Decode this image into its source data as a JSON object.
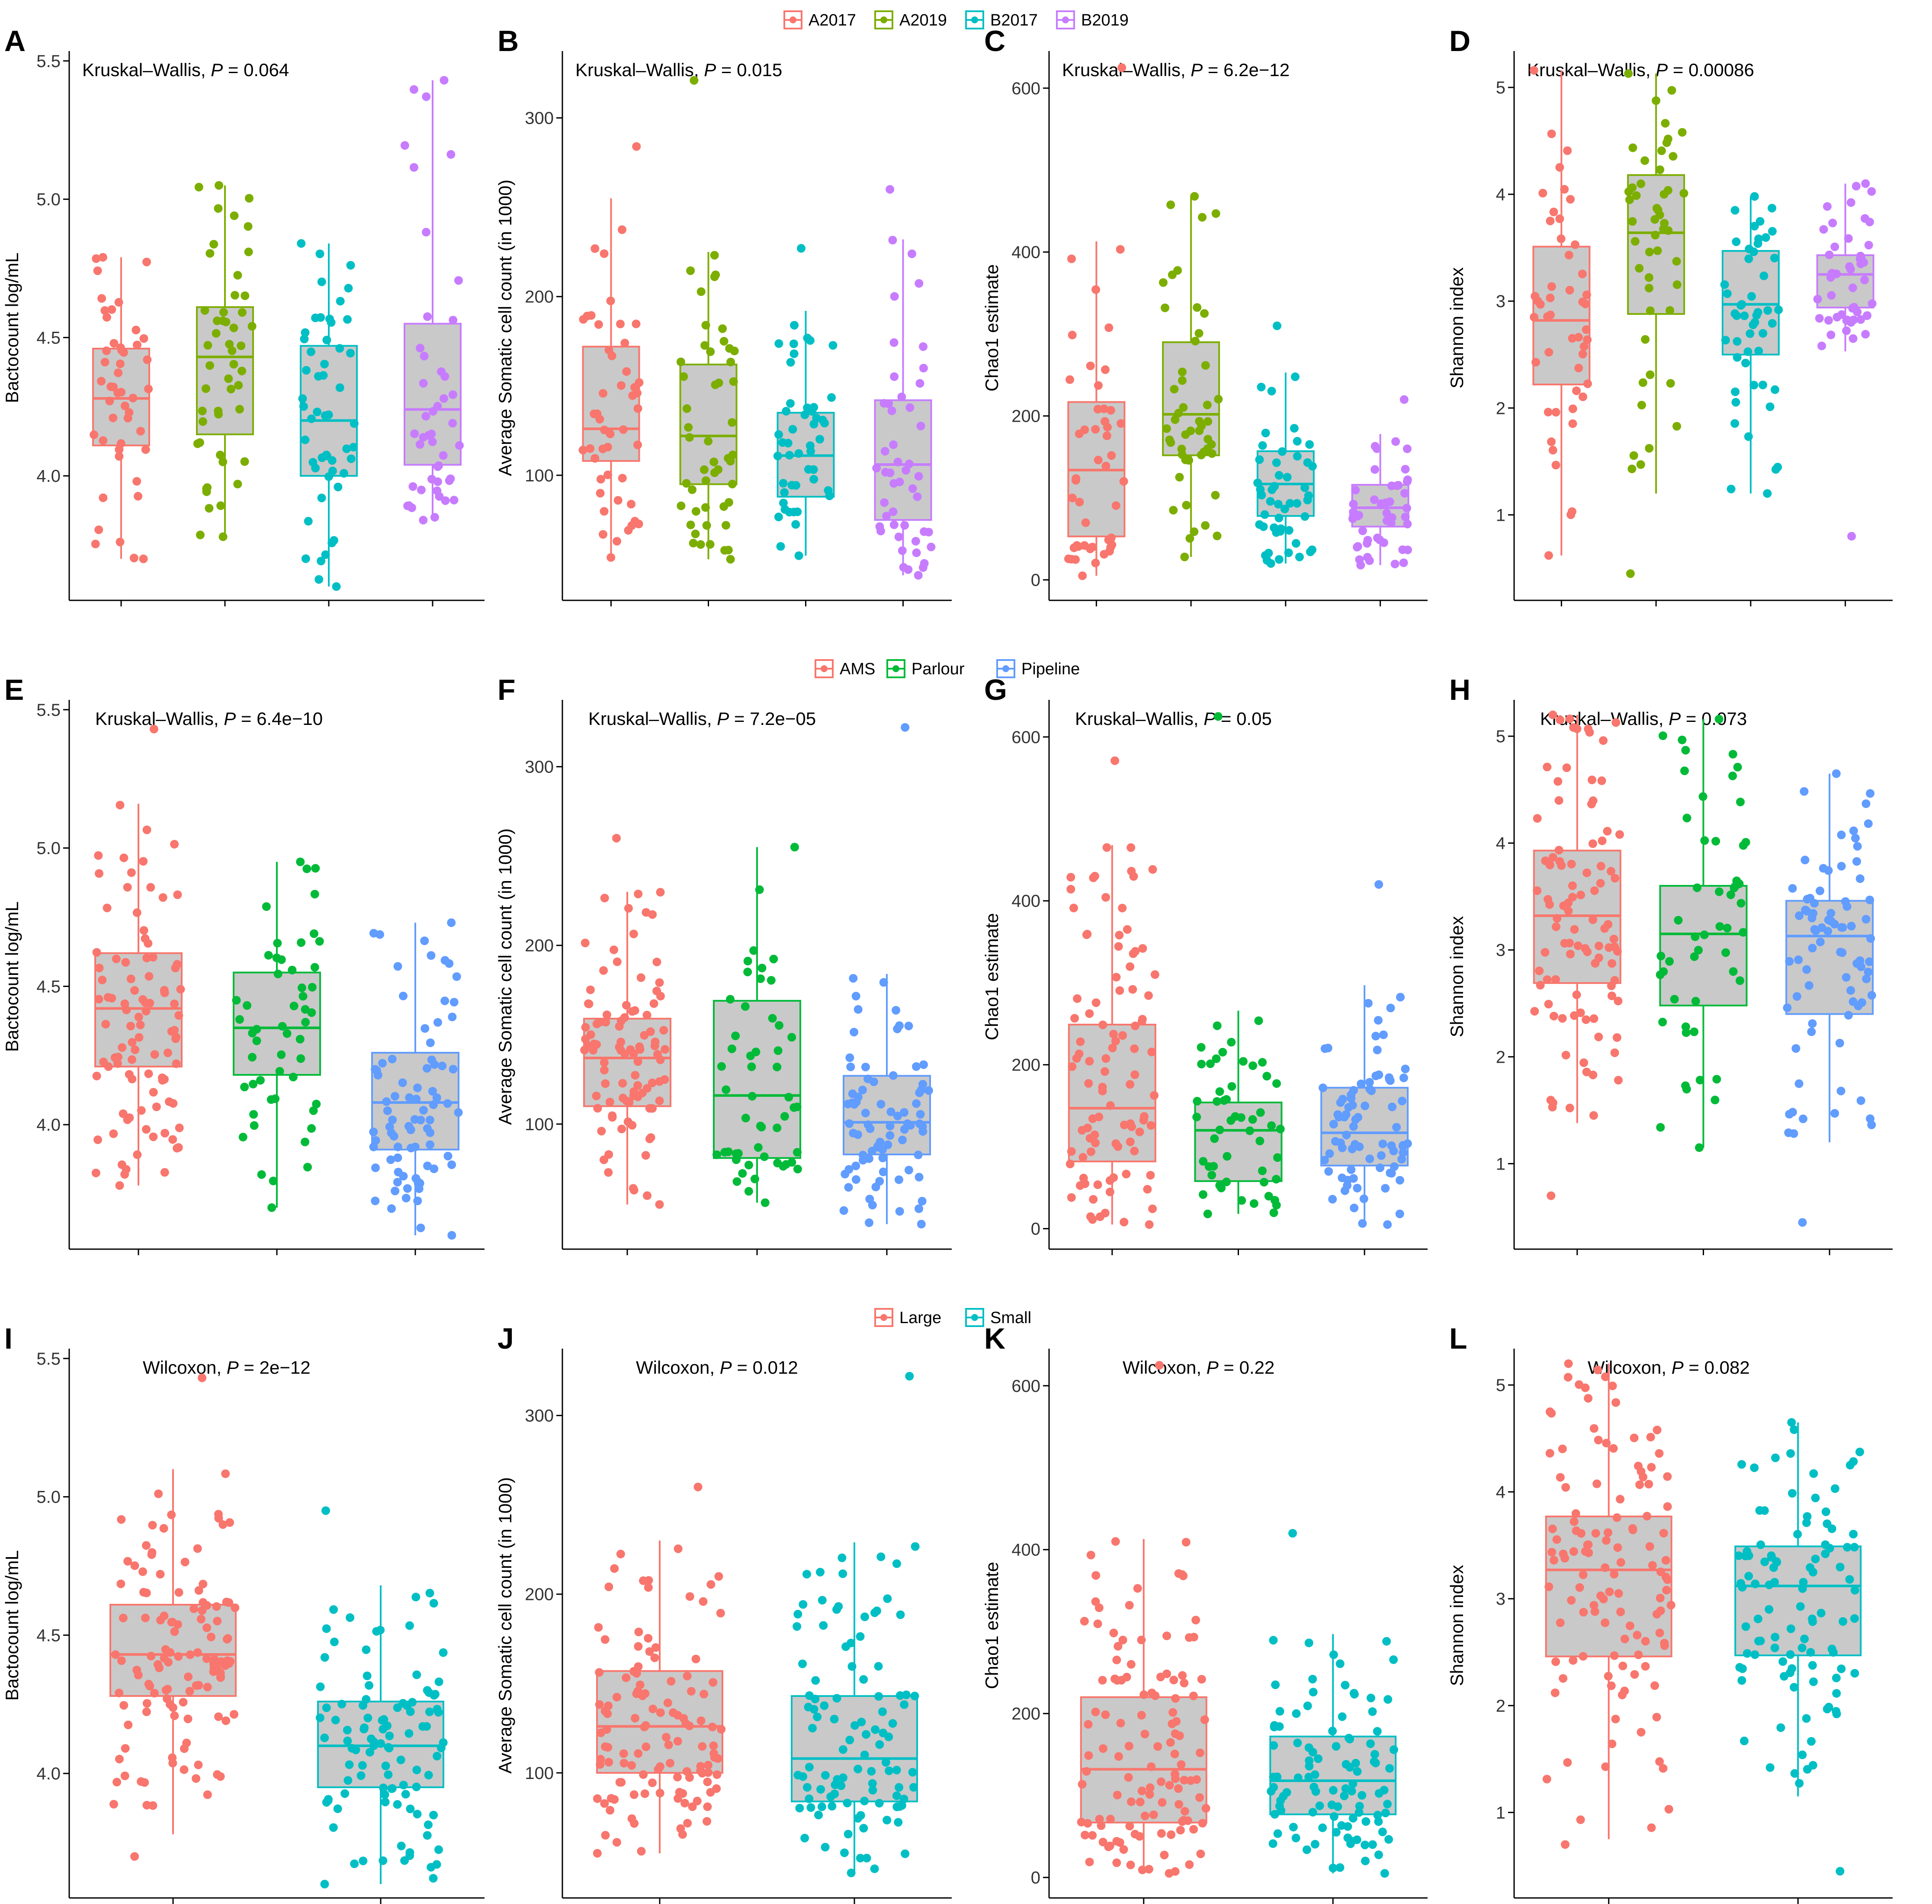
{
  "figure": {
    "panel_letters": [
      "A",
      "B",
      "C",
      "D",
      "E",
      "F",
      "G",
      "H",
      "I",
      "J",
      "K",
      "L"
    ]
  },
  "legends": [
    {
      "items": [
        {
          "label": "A2017",
          "color": "#F8766D"
        },
        {
          "label": "A2019",
          "color": "#7CAE00"
        },
        {
          "label": "B2017",
          "color": "#00BFC4"
        },
        {
          "label": "B2019",
          "color": "#C77CFF"
        }
      ]
    },
    {
      "items": [
        {
          "label": "AMS",
          "color": "#F8766D"
        },
        {
          "label": "Parlour",
          "color": "#00BA38"
        },
        {
          "label": "Pipeline",
          "color": "#619CFF"
        }
      ]
    },
    {
      "items": [
        {
          "label": "Large",
          "color": "#F8766D"
        },
        {
          "label": "Small",
          "color": "#00BFC4"
        }
      ]
    }
  ],
  "chart_data": [
    {
      "panel": "A",
      "type": "box",
      "test": "Kruskal–Wallis, ",
      "p_label": "P",
      "p_value": " = 0.064",
      "ylabel": "Bactocount log/mL",
      "ylim": [
        3.55,
        5.52
      ],
      "yticks": [
        4.0,
        4.5,
        5.0,
        5.5
      ],
      "tick_labels": [
        "4.0",
        "4.5",
        "5.0",
        "5.5"
      ],
      "groups": [
        "A2017",
        "A2019",
        "B2017",
        "B2019"
      ],
      "series": [
        {
          "name": "A2017",
          "color": "#F8766D",
          "q1": 4.11,
          "median": 4.28,
          "q3": 4.46,
          "lo": 3.7,
          "hi": 4.79,
          "n": 48,
          "min": 3.7,
          "max": 4.79
        },
        {
          "name": "A2019",
          "color": "#7CAE00",
          "q1": 4.15,
          "median": 4.43,
          "q3": 4.61,
          "lo": 3.78,
          "hi": 5.05,
          "n": 50,
          "min": 3.78,
          "max": 5.05
        },
        {
          "name": "B2017",
          "color": "#00BFC4",
          "q1": 4.0,
          "median": 4.2,
          "q3": 4.47,
          "lo": 3.6,
          "hi": 4.84,
          "n": 52,
          "min": 3.6,
          "max": 4.84
        },
        {
          "name": "B2019",
          "color": "#C77CFF",
          "q1": 4.04,
          "median": 4.24,
          "q3": 4.55,
          "lo": 3.84,
          "hi": 5.43,
          "n": 46,
          "min": 3.84,
          "max": 5.43
        }
      ]
    },
    {
      "panel": "B",
      "type": "box",
      "test": "Kruskal–Wallis, ",
      "p_label": "P",
      "p_value": " = 0.015",
      "ylabel": "Average Somatic cell count (in 1000)",
      "ylim": [
        30,
        335
      ],
      "yticks": [
        100,
        200,
        300
      ],
      "tick_labels": [
        "100",
        "200",
        "300"
      ],
      "groups": [
        "A2017",
        "A2019",
        "B2017",
        "B2019"
      ],
      "series": [
        {
          "name": "A2017",
          "color": "#F8766D",
          "q1": 108,
          "median": 126,
          "q3": 172,
          "lo": 54,
          "hi": 255,
          "n": 48,
          "min": 54,
          "max": 284
        },
        {
          "name": "A2019",
          "color": "#7CAE00",
          "q1": 95,
          "median": 122,
          "q3": 162,
          "lo": 53,
          "hi": 225,
          "n": 50,
          "min": 53,
          "max": 321
        },
        {
          "name": "B2017",
          "color": "#00BFC4",
          "q1": 88,
          "median": 111,
          "q3": 135,
          "lo": 55,
          "hi": 192,
          "n": 48,
          "min": 55,
          "max": 227
        },
        {
          "name": "B2019",
          "color": "#C77CFF",
          "q1": 75,
          "median": 106,
          "q3": 142,
          "lo": 44,
          "hi": 232,
          "n": 48,
          "min": 44,
          "max": 260
        }
      ]
    },
    {
      "panel": "C",
      "type": "box",
      "test": "Kruskal–Wallis, ",
      "p_label": "P",
      "p_value": " = 6.2e−12",
      "ylabel": "Chao1 estimate",
      "ylim": [
        -25,
        640
      ],
      "yticks": [
        0,
        200,
        400,
        600
      ],
      "tick_labels": [
        "0",
        "200",
        "400",
        "600"
      ],
      "groups": [
        "A2017",
        "A2019",
        "B2017",
        "B2019"
      ],
      "series": [
        {
          "name": "A2017",
          "color": "#F8766D",
          "q1": 53,
          "median": 134,
          "q3": 217,
          "lo": 5,
          "hi": 413,
          "n": 48,
          "min": 5,
          "max": 625
        },
        {
          "name": "A2019",
          "color": "#7CAE00",
          "q1": 152,
          "median": 202,
          "q3": 290,
          "lo": 28,
          "hi": 468,
          "n": 50,
          "min": 28,
          "max": 468
        },
        {
          "name": "B2017",
          "color": "#00BFC4",
          "q1": 78,
          "median": 117,
          "q3": 157,
          "lo": 20,
          "hi": 253,
          "n": 50,
          "min": 20,
          "max": 310
        },
        {
          "name": "B2019",
          "color": "#C77CFF",
          "q1": 65,
          "median": 88,
          "q3": 116,
          "lo": 18,
          "hi": 178,
          "n": 48,
          "min": 18,
          "max": 220
        }
      ]
    },
    {
      "panel": "D",
      "type": "box",
      "test": "Kruskal–Wallis, ",
      "p_label": "P",
      "p_value": " = 0.00086",
      "ylabel": "Shannon index",
      "ylim": [
        0.2,
        5.3
      ],
      "yticks": [
        1,
        2,
        3,
        4,
        5
      ],
      "tick_labels": [
        "1",
        "2",
        "3",
        "4",
        "5"
      ],
      "groups": [
        "A2017",
        "A2019",
        "B2017",
        "B2019"
      ],
      "series": [
        {
          "name": "A2017",
          "color": "#F8766D",
          "q1": 2.22,
          "median": 2.82,
          "q3": 3.51,
          "lo": 0.62,
          "hi": 5.16,
          "n": 48,
          "min": 0.62,
          "max": 5.16
        },
        {
          "name": "A2019",
          "color": "#7CAE00",
          "q1": 2.88,
          "median": 3.64,
          "q3": 4.18,
          "lo": 1.2,
          "hi": 5.13,
          "n": 50,
          "min": 0.45,
          "max": 5.13
        },
        {
          "name": "B2017",
          "color": "#00BFC4",
          "q1": 2.5,
          "median": 2.97,
          "q3": 3.47,
          "lo": 1.2,
          "hi": 3.98,
          "n": 50,
          "min": 1.2,
          "max": 3.98
        },
        {
          "name": "B2019",
          "color": "#C77CFF",
          "q1": 2.94,
          "median": 3.25,
          "q3": 3.43,
          "lo": 2.53,
          "hi": 4.1,
          "n": 48,
          "min": 0.8,
          "max": 4.1
        }
      ]
    },
    {
      "panel": "E",
      "type": "box",
      "test": "Kruskal–Wallis, ",
      "p_label": "P",
      "p_value": " = 6.4e−10",
      "ylabel": "Bactocount log/mL",
      "ylim": [
        3.55,
        5.52
      ],
      "yticks": [
        4.0,
        4.5,
        5.0,
        5.5
      ],
      "tick_labels": [
        "4.0",
        "4.5",
        "5.0",
        "5.5"
      ],
      "groups": [
        "AMS",
        "Parlour",
        "Pipeline"
      ],
      "series": [
        {
          "name": "AMS",
          "color": "#F8766D",
          "q1": 4.21,
          "median": 4.42,
          "q3": 4.62,
          "lo": 3.78,
          "hi": 5.16,
          "n": 96,
          "min": 3.78,
          "max": 5.43
        },
        {
          "name": "Parlour",
          "color": "#00BA38",
          "q1": 4.18,
          "median": 4.35,
          "q3": 4.55,
          "lo": 3.7,
          "hi": 4.95,
          "n": 52,
          "min": 3.7,
          "max": 4.95
        },
        {
          "name": "Pipeline",
          "color": "#619CFF",
          "q1": 3.91,
          "median": 4.08,
          "q3": 4.26,
          "lo": 3.6,
          "hi": 4.73,
          "n": 80,
          "min": 3.6,
          "max": 4.73
        }
      ]
    },
    {
      "panel": "F",
      "type": "box",
      "test": "Kruskal–Wallis, ",
      "p_label": "P",
      "p_value": " = 7.2e−05",
      "ylabel": "Average Somatic cell count (in 1000)",
      "ylim": [
        30,
        335
      ],
      "yticks": [
        100,
        200,
        300
      ],
      "tick_labels": [
        "100",
        "200",
        "300"
      ],
      "groups": [
        "AMS",
        "Parlour",
        "Pipeline"
      ],
      "series": [
        {
          "name": "AMS",
          "color": "#F8766D",
          "q1": 110,
          "median": 137,
          "q3": 159,
          "lo": 55,
          "hi": 230,
          "n": 96,
          "min": 55,
          "max": 260
        },
        {
          "name": "Parlour",
          "color": "#00BA38",
          "q1": 81,
          "median": 116,
          "q3": 169,
          "lo": 56,
          "hi": 255,
          "n": 52,
          "min": 56,
          "max": 255
        },
        {
          "name": "Pipeline",
          "color": "#619CFF",
          "q1": 83,
          "median": 101,
          "q3": 127,
          "lo": 44,
          "hi": 184,
          "n": 80,
          "min": 44,
          "max": 322
        }
      ]
    },
    {
      "panel": "G",
      "type": "box",
      "test": "Kruskal–Wallis, ",
      "p_label": "P",
      "p_value": " = 0.05",
      "ylabel": "Chao1 estimate",
      "ylim": [
        -25,
        640
      ],
      "yticks": [
        0,
        200,
        400,
        600
      ],
      "tick_labels": [
        "0",
        "200",
        "400",
        "600"
      ],
      "groups": [
        "AMS",
        "Parlour",
        "Pipeline"
      ],
      "series": [
        {
          "name": "AMS",
          "color": "#F8766D",
          "q1": 82,
          "median": 147,
          "q3": 249,
          "lo": 5,
          "hi": 468,
          "n": 96,
          "min": 5,
          "max": 571
        },
        {
          "name": "Parlour",
          "color": "#00BA38",
          "q1": 58,
          "median": 120,
          "q3": 154,
          "lo": 18,
          "hi": 266,
          "n": 52,
          "min": 18,
          "max": 625
        },
        {
          "name": "Pipeline",
          "color": "#619CFF",
          "q1": 77,
          "median": 117,
          "q3": 172,
          "lo": 5,
          "hi": 297,
          "n": 80,
          "min": 5,
          "max": 420
        }
      ]
    },
    {
      "panel": "H",
      "type": "box",
      "test": "Kruskal–Wallis, ",
      "p_label": "P",
      "p_value": " = 0.073",
      "ylabel": "Shannon index",
      "ylim": [
        0.2,
        5.3
      ],
      "yticks": [
        1,
        2,
        3,
        4,
        5
      ],
      "tick_labels": [
        "1",
        "2",
        "3",
        "4",
        "5"
      ],
      "groups": [
        "AMS",
        "Parlour",
        "Pipeline"
      ],
      "series": [
        {
          "name": "AMS",
          "color": "#F8766D",
          "q1": 2.69,
          "median": 3.32,
          "q3": 3.93,
          "lo": 1.38,
          "hi": 5.2,
          "n": 96,
          "min": 0.7,
          "max": 5.2
        },
        {
          "name": "Parlour",
          "color": "#00BA38",
          "q1": 2.48,
          "median": 3.15,
          "q3": 3.6,
          "lo": 1.15,
          "hi": 5.16,
          "n": 52,
          "min": 1.15,
          "max": 5.16
        },
        {
          "name": "Pipeline",
          "color": "#619CFF",
          "q1": 2.4,
          "median": 3.13,
          "q3": 3.46,
          "lo": 1.2,
          "hi": 4.65,
          "n": 80,
          "min": 0.45,
          "max": 4.65
        }
      ]
    },
    {
      "panel": "I",
      "type": "box",
      "test": "Wilcoxon, ",
      "p_label": "P",
      "p_value": " = 2e−12",
      "ylabel": "Bactocount log/mL",
      "ylim": [
        3.55,
        5.52
      ],
      "yticks": [
        4.0,
        4.5,
        5.0,
        5.5
      ],
      "tick_labels": [
        "4.0",
        "4.5",
        "5.0",
        "5.5"
      ],
      "groups": [
        "Large",
        "Small"
      ],
      "series": [
        {
          "name": "Large",
          "color": "#F8766D",
          "q1": 4.28,
          "median": 4.43,
          "q3": 4.61,
          "lo": 3.78,
          "hi": 5.1,
          "n": 120,
          "min": 3.7,
          "max": 5.43
        },
        {
          "name": "Small",
          "color": "#00BFC4",
          "q1": 3.95,
          "median": 4.1,
          "q3": 4.26,
          "lo": 3.6,
          "hi": 4.68,
          "n": 104,
          "min": 3.6,
          "max": 4.95
        }
      ]
    },
    {
      "panel": "J",
      "type": "box",
      "test": "Wilcoxon, ",
      "p_label": "P",
      "p_value": " = 0.012",
      "ylabel": "Average Somatic cell count (in 1000)",
      "ylim": [
        30,
        335
      ],
      "yticks": [
        100,
        200,
        300
      ],
      "tick_labels": [
        "100",
        "200",
        "300"
      ],
      "groups": [
        "Large",
        "Small"
      ],
      "series": [
        {
          "name": "Large",
          "color": "#F8766D",
          "q1": 100,
          "median": 126,
          "q3": 157,
          "lo": 55,
          "hi": 230,
          "n": 120,
          "min": 55,
          "max": 260
        },
        {
          "name": "Small",
          "color": "#00BFC4",
          "q1": 84,
          "median": 108,
          "q3": 143,
          "lo": 44,
          "hi": 229,
          "n": 104,
          "min": 44,
          "max": 322
        }
      ]
    },
    {
      "panel": "K",
      "type": "box",
      "test": "Wilcoxon, ",
      "p_label": "P",
      "p_value": " = 0.22",
      "ylabel": "Chao1 estimate",
      "ylim": [
        -25,
        640
      ],
      "yticks": [
        0,
        200,
        400,
        600
      ],
      "tick_labels": [
        "0",
        "200",
        "400",
        "600"
      ],
      "groups": [
        "Large",
        "Small"
      ],
      "series": [
        {
          "name": "Large",
          "color": "#F8766D",
          "q1": 67,
          "median": 132,
          "q3": 220,
          "lo": 5,
          "hi": 413,
          "n": 120,
          "min": 5,
          "max": 625
        },
        {
          "name": "Small",
          "color": "#00BFC4",
          "q1": 77,
          "median": 118,
          "q3": 172,
          "lo": 5,
          "hi": 297,
          "n": 104,
          "min": 5,
          "max": 420
        }
      ]
    },
    {
      "panel": "L",
      "type": "box",
      "test": "Wilcoxon, ",
      "p_label": "P",
      "p_value": " = 0.082",
      "ylabel": "Shannon index",
      "ylim": [
        0.2,
        5.3
      ],
      "yticks": [
        1,
        2,
        3,
        4,
        5
      ],
      "tick_labels": [
        "1",
        "2",
        "3",
        "4",
        "5"
      ],
      "groups": [
        "Large",
        "Small"
      ],
      "series": [
        {
          "name": "Large",
          "color": "#F8766D",
          "q1": 2.46,
          "median": 3.27,
          "q3": 3.77,
          "lo": 0.75,
          "hi": 5.2,
          "n": 120,
          "min": 0.7,
          "max": 5.2
        },
        {
          "name": "Small",
          "color": "#00BFC4",
          "q1": 2.47,
          "median": 3.12,
          "q3": 3.49,
          "lo": 1.15,
          "hi": 4.65,
          "n": 104,
          "min": 0.45,
          "max": 4.65
        }
      ]
    }
  ]
}
